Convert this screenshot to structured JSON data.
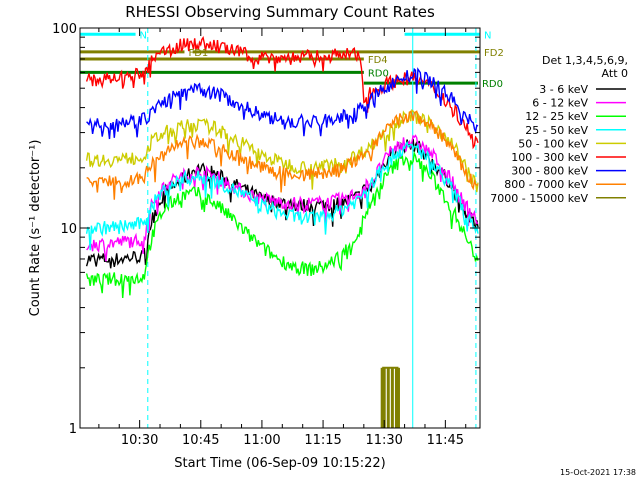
{
  "title": "RHESSI Observing Summary Count Rates",
  "footer_timestamp": "15-Oct-2021 17:38",
  "chart_data": {
    "type": "line",
    "title": "RHESSI Observing Summary Count Rates",
    "xlabel": "Start Time (06-Sep-09 10:15:22)",
    "ylabel": "Count Rate (s⁻¹ detector⁻¹)",
    "y_scale": "log",
    "ylim": [
      1,
      100
    ],
    "xlim": [
      "10:15:22",
      "11:53:30"
    ],
    "x_ticks": [
      "10:30",
      "10:45",
      "11:00",
      "11:15",
      "11:30",
      "11:45"
    ],
    "y_ticks": [
      "1",
      "10",
      "100"
    ],
    "x_tick_minutes": [
      30,
      45,
      60,
      75,
      90,
      105
    ],
    "x_start_minutes": 15.37,
    "x_end_minutes": 113.5,
    "grid": false,
    "legend": {
      "placement": "right",
      "header_line1": "Det 1,3,4,5,6,9,",
      "header_line2": "Att 0"
    },
    "series": [
      {
        "name": "3 - 6 keV",
        "color": "#000000",
        "x": [
          17,
          20,
          25,
          29,
          31,
          33,
          36,
          40,
          44,
          48,
          52,
          56,
          60,
          64,
          68,
          72,
          76,
          80,
          84,
          85,
          87,
          90,
          92,
          95,
          98,
          102,
          106,
          108,
          110,
          112,
          113
        ],
        "y": [
          7.0,
          7.0,
          7.0,
          7.2,
          7.2,
          11,
          15,
          17,
          20,
          19,
          17,
          15.5,
          14,
          13.5,
          13,
          13,
          13,
          13.5,
          14.5,
          15.5,
          16,
          21,
          24,
          26,
          26,
          21,
          17,
          14,
          12,
          10.5,
          10
        ]
      },
      {
        "name": "6 - 12 keV",
        "color": "#ff00ff",
        "x": [
          17,
          20,
          25,
          29,
          31,
          33,
          36,
          40,
          44,
          48,
          52,
          56,
          60,
          64,
          68,
          72,
          76,
          80,
          84,
          85,
          87,
          90,
          92,
          95,
          98,
          102,
          106,
          108,
          110,
          112,
          113
        ],
        "y": [
          8.3,
          8.3,
          8.5,
          8.7,
          8.8,
          13,
          16.5,
          18,
          19,
          18.5,
          16.5,
          15,
          14,
          13.5,
          13.3,
          13.3,
          13.4,
          14,
          15,
          16,
          17,
          21.5,
          24.5,
          27,
          27,
          23,
          18,
          15,
          13,
          11.5,
          11
        ]
      },
      {
        "name": "12 - 25 keV",
        "color": "#00ff00",
        "x": [
          17,
          20,
          25,
          29,
          31,
          33,
          36,
          40,
          44,
          48,
          52,
          56,
          60,
          64,
          68,
          72,
          76,
          80,
          84,
          85,
          87,
          90,
          92,
          95,
          98,
          102,
          106,
          108,
          110,
          112,
          113
        ],
        "y": [
          5.5,
          5.5,
          5.6,
          5.6,
          5.7,
          9,
          12.5,
          14.5,
          15,
          13.5,
          11.5,
          9.5,
          8,
          7,
          6.4,
          6.2,
          6.5,
          7.5,
          9.5,
          11.5,
          13.5,
          17.5,
          20,
          22.5,
          22,
          17.5,
          13,
          11,
          9,
          7.5,
          7
        ]
      },
      {
        "name": "25 - 50 keV",
        "color": "#00ffff",
        "x": [
          17,
          20,
          25,
          29,
          31,
          33,
          36,
          40,
          44,
          48,
          52,
          56,
          60,
          64,
          68,
          72,
          76,
          80,
          84,
          85,
          87,
          90,
          92,
          95,
          98,
          102,
          106,
          108,
          110,
          112,
          113
        ],
        "y": [
          10,
          10,
          10.2,
          10.4,
          10.5,
          13,
          15.5,
          17.5,
          18,
          17.5,
          16,
          14.5,
          13,
          12,
          11.4,
          11.2,
          11.5,
          12.5,
          14,
          15,
          16.5,
          21,
          23,
          25,
          25,
          21,
          16.5,
          14,
          12,
          10.5,
          10
        ]
      },
      {
        "name": "50 - 100 keV",
        "color": "#cccc00",
        "x": [
          17,
          20,
          25,
          29,
          31,
          33,
          36,
          40,
          44,
          48,
          52,
          56,
          60,
          64,
          68,
          72,
          76,
          80,
          84,
          85,
          87,
          90,
          92,
          95,
          98,
          102,
          106,
          108,
          110,
          112,
          113
        ],
        "y": [
          22,
          22,
          22,
          22.5,
          23,
          27,
          30,
          32,
          33,
          32,
          29,
          26,
          23,
          21.5,
          20.5,
          20,
          20.5,
          21.5,
          23.5,
          24.5,
          26,
          30,
          33,
          36,
          36,
          33,
          28,
          24,
          20,
          17,
          16
        ]
      },
      {
        "name": "100 - 300 keV",
        "color": "#ff0000",
        "x": [
          17,
          20,
          25,
          29,
          31,
          33,
          36,
          40,
          44,
          48,
          52,
          56,
          60,
          64,
          68,
          72,
          76,
          80,
          84,
          85,
          87,
          90,
          92,
          95,
          98,
          102,
          106,
          108,
          110,
          112,
          113
        ],
        "y": [
          55,
          55,
          56,
          58,
          60,
          68,
          76,
          82,
          84,
          82,
          78,
          74,
          72,
          71,
          71,
          72,
          73,
          74,
          73,
          46,
          48,
          52,
          54,
          56,
          56,
          50,
          42,
          37,
          32,
          28,
          27
        ]
      },
      {
        "name": "300 - 800 keV",
        "color": "#0000ff",
        "x": [
          17,
          20,
          25,
          29,
          31,
          33,
          36,
          40,
          44,
          48,
          52,
          56,
          60,
          64,
          68,
          72,
          76,
          80,
          84,
          85,
          87,
          90,
          92,
          95,
          98,
          102,
          106,
          108,
          110,
          112,
          113
        ],
        "y": [
          33,
          33,
          34,
          34.5,
          35,
          38,
          43,
          47,
          49,
          48,
          44,
          40,
          37,
          35,
          34,
          34,
          34.5,
          36,
          39,
          41,
          44,
          50,
          53,
          57,
          58,
          54,
          46,
          40,
          36,
          33,
          32
        ]
      },
      {
        "name": "800 - 7000 keV",
        "color": "#ff8000",
        "x": [
          17,
          20,
          25,
          29,
          31,
          33,
          36,
          40,
          44,
          48,
          52,
          56,
          60,
          64,
          68,
          72,
          76,
          80,
          84,
          85,
          87,
          90,
          92,
          95,
          98,
          102,
          106,
          108,
          110,
          112,
          113
        ],
        "y": [
          17,
          17,
          17.2,
          17.5,
          17.8,
          21,
          24,
          26,
          27,
          26,
          24,
          22,
          20,
          19,
          18.5,
          18.5,
          19,
          20,
          22,
          23.5,
          25,
          30,
          33,
          36,
          36,
          32,
          26,
          22,
          19,
          16.5,
          16
        ]
      },
      {
        "name": "7000 - 15000 keV",
        "color": "#808000",
        "style": "burst",
        "x": [
          89.5,
          90,
          91,
          92,
          93,
          93.5
        ],
        "y": [
          2.0,
          2.0,
          2.0,
          2.0,
          2.0,
          2.0
        ],
        "baseline_y": 1.0
      }
    ],
    "flags": [
      {
        "label": "N",
        "color": "#00ffff",
        "start": "10:15:22",
        "end": "10:29:00",
        "y_level": 93
      },
      {
        "label": "N",
        "color": "#00ffff",
        "start": "11:35:00",
        "end": "11:53:30",
        "y_level": 93
      },
      {
        "label": "FD1",
        "color": "#808000",
        "start": "10:15:22",
        "end": "10:41:00",
        "y_level": 76
      },
      {
        "label": "FD2",
        "color": "#808000",
        "start": "10:43:00",
        "end": "11:53:30",
        "y_level": 76
      },
      {
        "label": "FD4",
        "color": "#808000",
        "start": "10:15:22",
        "end": "11:25:00",
        "y_level": 70
      },
      {
        "label": "RD0",
        "color": "#008000",
        "start": "10:15:22",
        "end": "11:25:00",
        "y_level": 60
      },
      {
        "label": "RD0",
        "color": "#008000",
        "start": "11:25:00",
        "end": "11:53:00",
        "y_level": 53
      }
    ],
    "vlines": [
      {
        "time": "10:32:00",
        "style": "dashed",
        "color": "#00ffff"
      },
      {
        "time": "11:37:00",
        "style": "solid",
        "color": "#00ffff"
      },
      {
        "time": "11:52:30",
        "style": "dashed",
        "color": "#00ffff"
      }
    ]
  }
}
